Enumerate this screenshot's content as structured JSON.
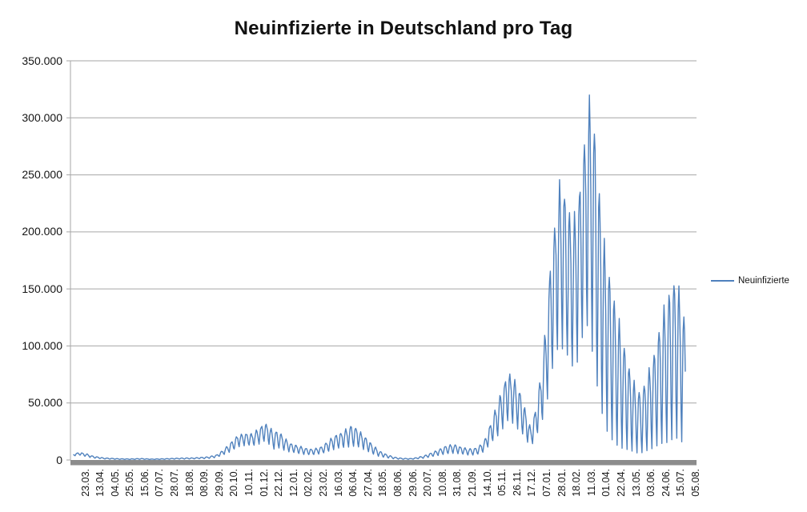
{
  "page": {
    "background": "#FFFFFF"
  },
  "colors": {
    "line": "#4F81BD",
    "gridline": "#A6A6A6",
    "axis_line": "#A6A6A6",
    "baseline_bar": "#8C8C8C",
    "text": "#141414"
  },
  "legend": {
    "position": "right",
    "label": "Neuinfizierte"
  },
  "chart_data": {
    "type": "line",
    "title": "Neuinfizierte in Deutschland pro Tag",
    "xlabel": "",
    "ylabel": "",
    "grid": true,
    "legend_position": "right",
    "series": [
      {
        "name": "Neuinfizierte",
        "color": "#4F81BD"
      }
    ],
    "y_axis": {
      "min": 0,
      "max": 350000,
      "step": 50000,
      "tick_labels": [
        "0",
        "50.000",
        "100.000",
        "150.000",
        "200.000",
        "250.000",
        "300.000",
        "350.000"
      ]
    },
    "x_axis": {
      "tick_labels": [
        "23.03.",
        "13.04.",
        "04.05.",
        "25.05.",
        "15.06.",
        "07.07.",
        "28.07.",
        "18.08.",
        "08.09.",
        "29.09.",
        "20.10.",
        "10.11.",
        "01.12.",
        "22.12.",
        "12.01.",
        "02.02.",
        "23.02.",
        "16.03.",
        "06.04.",
        "27.04.",
        "18.05.",
        "08.06.",
        "29.06.",
        "20.07.",
        "10.08.",
        "31.08.",
        "21.09.",
        "14.10.",
        "05.11.",
        "26.11.",
        "17.12.",
        "07.01.",
        "28.01.",
        "18.02.",
        "11.03.",
        "01.04.",
        "22.04.",
        "13.05.",
        "03.06.",
        "24.06.",
        "15.07.",
        "05.08."
      ],
      "days_per_tick": 21
    },
    "daily_series_model": {
      "description": "Daily values oscillate weekly between an estimated lower and upper envelope read from the chart. envelope_anchors = [tick_position, weekly_peak, weekly_trough]; tick_position is in units of x-axis tick labels (21 days apart). Daily value = trough + (peak - trough) * weekly_pattern[(day + phase) % 7].",
      "total_days": 861,
      "weekly_pattern": [
        0.08,
        0.5,
        0.88,
        1.0,
        0.9,
        0.68,
        0.28
      ],
      "phase": 5,
      "max_value": 318000,
      "envelope_anchors": [
        [
          0,
          5200,
          3400
        ],
        [
          0.35,
          6600,
          4200
        ],
        [
          0.8,
          5600,
          3000
        ],
        [
          1.3,
          3400,
          1600
        ],
        [
          2,
          1900,
          850
        ],
        [
          3,
          1150,
          500
        ],
        [
          3.8,
          950,
          400
        ],
        [
          4.5,
          1350,
          550
        ],
        [
          5.2,
          850,
          380
        ],
        [
          6,
          1100,
          500
        ],
        [
          7,
          1650,
          750
        ],
        [
          8,
          1900,
          850
        ],
        [
          9,
          2700,
          1250
        ],
        [
          9.6,
          4600,
          2100
        ],
        [
          10,
          8500,
          4000
        ],
        [
          10.5,
          14500,
          6800
        ],
        [
          11,
          21500,
          10500
        ],
        [
          11.4,
          23500,
          11500
        ],
        [
          12,
          22500,
          12000
        ],
        [
          12.5,
          28500,
          13500
        ],
        [
          12.8,
          32500,
          14500
        ],
        [
          13.1,
          30500,
          12000
        ],
        [
          13.4,
          23500,
          8500
        ],
        [
          13.7,
          25500,
          9500
        ],
        [
          14,
          21000,
          8000
        ],
        [
          14.5,
          15000,
          6200
        ],
        [
          15,
          12500,
          5300
        ],
        [
          15.6,
          10000,
          4300
        ],
        [
          16,
          9500,
          4100
        ],
        [
          16.6,
          11500,
          5000
        ],
        [
          17,
          15500,
          6600
        ],
        [
          17.5,
          21500,
          8600
        ],
        [
          18,
          24500,
          9300
        ],
        [
          18.6,
          29500,
          10800
        ],
        [
          19,
          27500,
          10400
        ],
        [
          19.5,
          21000,
          7800
        ],
        [
          20,
          13500,
          4800
        ],
        [
          20.5,
          7800,
          2700
        ],
        [
          21,
          4800,
          1550
        ],
        [
          21.5,
          2500,
          850
        ],
        [
          22,
          1550,
          550
        ],
        [
          22.6,
          1300,
          500
        ],
        [
          23,
          2100,
          850
        ],
        [
          23.5,
          3700,
          1500
        ],
        [
          24,
          6400,
          2600
        ],
        [
          24.5,
          9400,
          3700
        ],
        [
          25,
          12400,
          4900
        ],
        [
          25.5,
          13600,
          5400
        ],
        [
          26,
          11400,
          4500
        ],
        [
          26.5,
          9600,
          3900
        ],
        [
          27,
          10400,
          4100
        ],
        [
          27.5,
          16000,
          6400
        ],
        [
          28,
          33500,
          13500
        ],
        [
          28.5,
          52000,
          20500
        ],
        [
          29,
          73500,
          29000
        ],
        [
          29.25,
          76000,
          30000
        ],
        [
          29.6,
          68500,
          27000
        ],
        [
          30,
          56000,
          22000
        ],
        [
          30.35,
          40000,
          15000
        ],
        [
          30.65,
          27500,
          10500
        ],
        [
          31,
          47000,
          17500
        ],
        [
          31.35,
          76000,
          28000
        ],
        [
          31.65,
          115000,
          42000
        ],
        [
          32,
          178000,
          64000
        ],
        [
          32.3,
          214000,
          78000
        ],
        [
          32.6,
          246000,
          90000
        ],
        [
          33,
          228000,
          83000
        ],
        [
          33.3,
          209000,
          73000
        ],
        [
          33.65,
          213000,
          71000
        ],
        [
          34,
          252000,
          86000
        ],
        [
          34.3,
          288000,
          96000
        ],
        [
          34.57,
          318000,
          104000
        ],
        [
          34.8,
          300000,
          78000
        ],
        [
          35,
          275000,
          55000
        ],
        [
          35.3,
          226000,
          32000
        ],
        [
          35.6,
          189000,
          16000
        ],
        [
          36,
          157000,
          7000
        ],
        [
          36.3,
          134000,
          3500
        ],
        [
          36.6,
          117000,
          2500
        ],
        [
          37,
          95000,
          2000
        ],
        [
          37.35,
          77000,
          1800
        ],
        [
          37.7,
          63000,
          1600
        ],
        [
          38,
          57000,
          1600
        ],
        [
          38.3,
          67000,
          2200
        ],
        [
          38.65,
          83000,
          3000
        ],
        [
          39,
          99000,
          3800
        ],
        [
          39.3,
          118000,
          4500
        ],
        [
          39.65,
          133000,
          5200
        ],
        [
          40,
          148000,
          6000
        ],
        [
          40.3,
          161000,
          6500
        ],
        [
          40.6,
          150000,
          6000
        ],
        [
          41,
          118000,
          5000
        ]
      ]
    }
  }
}
